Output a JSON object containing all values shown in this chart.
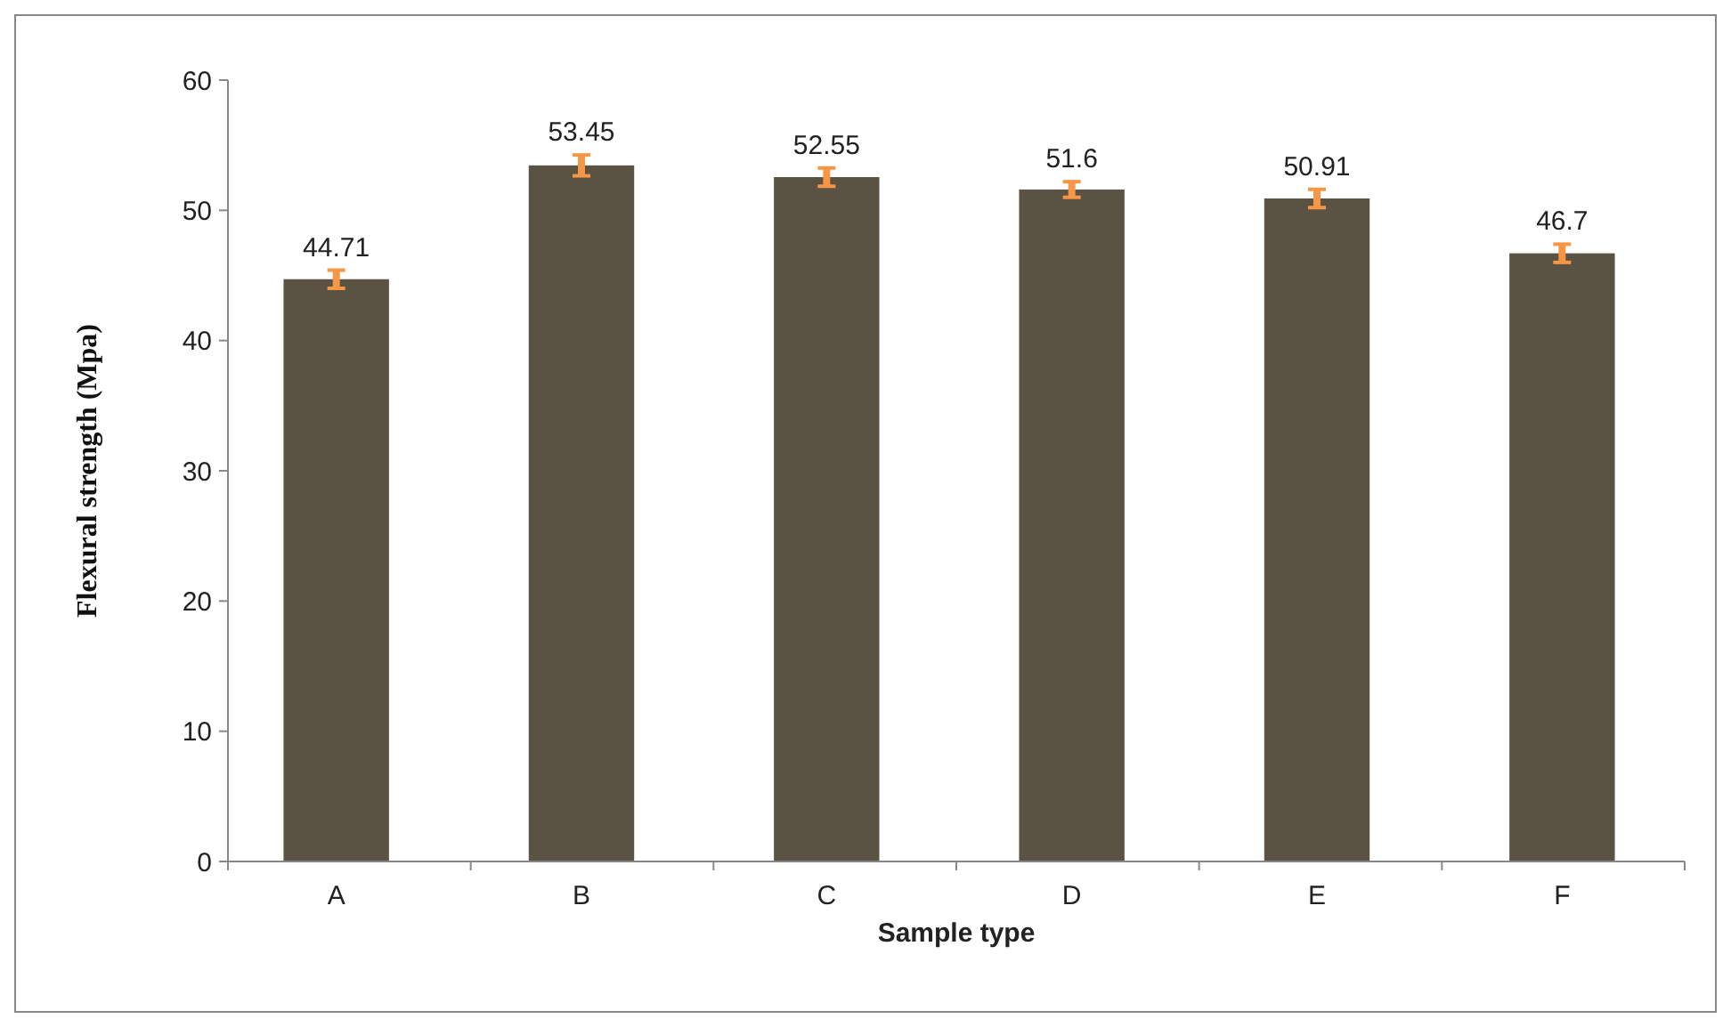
{
  "chart_data": {
    "type": "bar",
    "xlabel": "Sample type",
    "ylabel": "Flexural strength (Mpa)",
    "categories": [
      "A",
      "B",
      "C",
      "D",
      "E",
      "F"
    ],
    "values": [
      44.71,
      53.45,
      52.55,
      51.6,
      50.91,
      46.7
    ],
    "errors": [
      0.7,
      0.8,
      0.7,
      0.6,
      0.7,
      0.7
    ],
    "color": "#5a5243",
    "ylim": [
      0,
      60
    ],
    "yticks": [
      0,
      10,
      20,
      30,
      40,
      50,
      60
    ],
    "data_labels": true,
    "grid": false
  }
}
